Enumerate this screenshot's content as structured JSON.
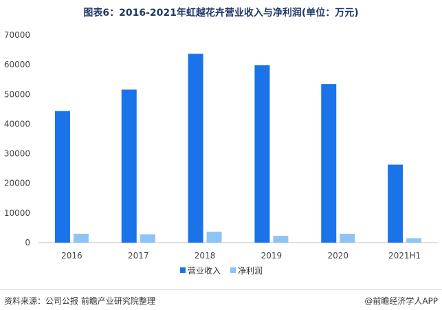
{
  "title": "图表6：2016-2021年虹越花卉营业收入与净利润(单位：万元)",
  "footer": {
    "source": "资料来源：公司公报 前瞻产业研究院整理",
    "brand": "@前瞻经济学人APP"
  },
  "chart_data": {
    "type": "bar",
    "categories": [
      "2016",
      "2017",
      "2018",
      "2019",
      "2020",
      "2021H1"
    ],
    "series": [
      {
        "name": "营业收入",
        "color": "#1a73e8",
        "values": [
          44400,
          51600,
          63700,
          59800,
          53500,
          26300
        ]
      },
      {
        "name": "净利润",
        "color": "#8ec3f5",
        "values": [
          3000,
          2800,
          3700,
          2300,
          3000,
          1500
        ]
      }
    ],
    "yticks": [
      "0",
      "10000",
      "20000",
      "30000",
      "40000",
      "50000",
      "60000",
      "70000"
    ],
    "ylim": [
      0,
      70000
    ],
    "grid": false,
    "legend": "bottom-center"
  }
}
